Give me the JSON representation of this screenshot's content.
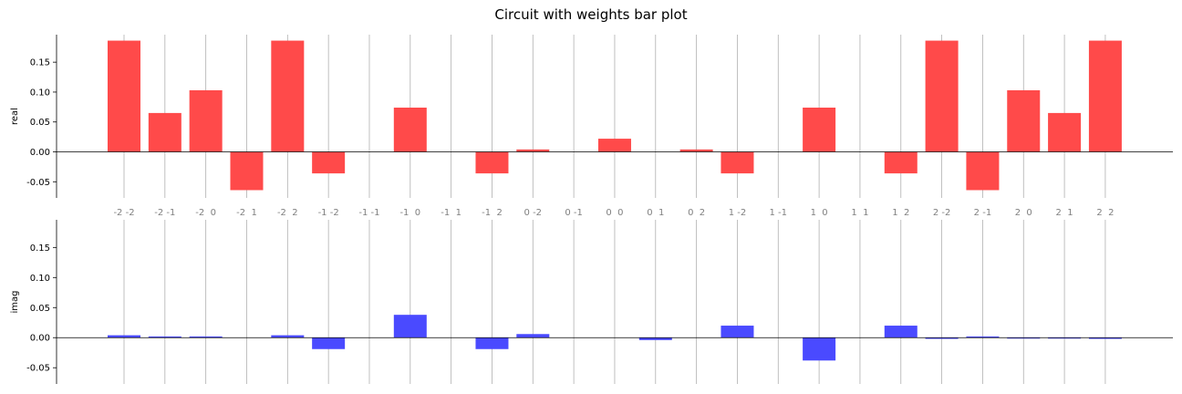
{
  "chart_data": {
    "type": "bar",
    "title": "Circuit with weights bar plot",
    "categories": [
      "-2 -2",
      "-2 -1",
      "-2  0",
      "-2  1",
      "-2  2",
      "-1 -2",
      "-1 -1",
      "-1  0",
      "-1  1",
      "-1  2",
      "0 -2",
      "0 -1",
      "0  0",
      "0  1",
      "0  2",
      "1 -2",
      "1 -1",
      "1  0",
      "1  1",
      "1  2",
      "2 -2",
      "2 -1",
      "2  0",
      "2  1",
      "2  2"
    ],
    "ylim": [
      -0.077,
      0.196
    ],
    "yticks": [
      "0.15",
      "0.10",
      "0.05",
      "0.00",
      "-0.05"
    ],
    "ytick_values": [
      0.15,
      0.1,
      0.05,
      0.0,
      -0.05
    ],
    "series": [
      {
        "name": "real",
        "color": "#ff4a4a",
        "values": [
          0.186,
          0.065,
          0.103,
          -0.064,
          0.186,
          -0.036,
          0.0,
          0.074,
          0.0,
          -0.036,
          0.004,
          0.0,
          0.022,
          0.0,
          0.004,
          -0.036,
          0.0,
          0.074,
          0.0,
          -0.036,
          0.186,
          -0.064,
          0.103,
          0.065,
          0.186
        ]
      },
      {
        "name": "imag",
        "color": "#4a4aff",
        "values": [
          0.004,
          0.002,
          0.002,
          0.0,
          0.004,
          -0.019,
          0.0,
          0.038,
          0.0,
          -0.019,
          0.006,
          0.0,
          0.0,
          -0.004,
          0.0,
          0.02,
          0.0,
          -0.038,
          0.0,
          0.02,
          -0.002,
          0.002,
          -0.001,
          -0.001,
          -0.002
        ]
      }
    ],
    "ylabels": [
      "real",
      "imag"
    ],
    "grid": "vertical"
  }
}
